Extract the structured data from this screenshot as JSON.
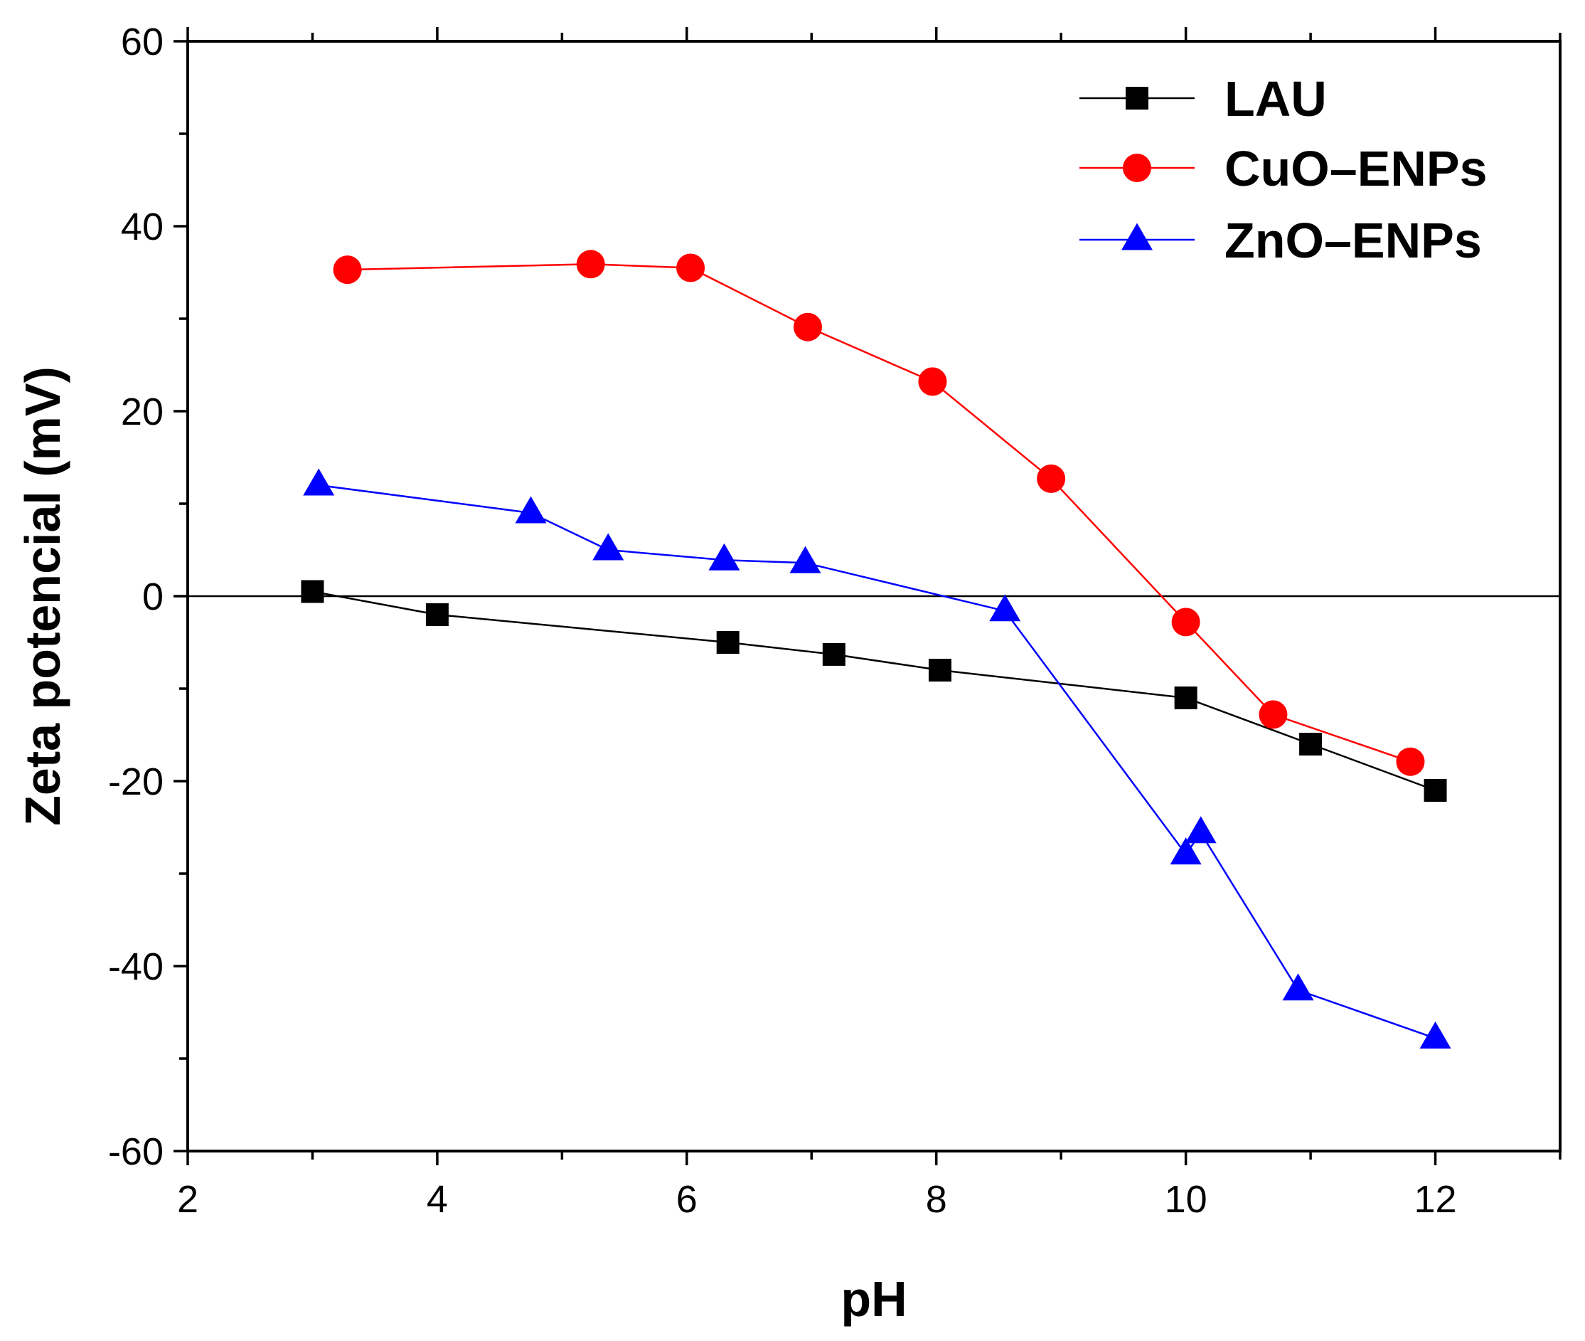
{
  "chart_data": {
    "type": "line",
    "title": "",
    "xlabel": "pH",
    "ylabel": "Zeta potencial (mV)",
    "xlim": [
      2,
      13
    ],
    "ylim": [
      -60,
      60
    ],
    "x_ticks": [
      2,
      4,
      6,
      8,
      10,
      12
    ],
    "x_tick_labels": [
      "2",
      "4",
      "6",
      "8",
      "10",
      "12"
    ],
    "y_ticks": [
      -60,
      -40,
      -20,
      0,
      20,
      40,
      60
    ],
    "y_tick_labels": [
      "-60",
      "-40",
      "-20",
      "0",
      "20",
      "40",
      "60"
    ],
    "zero_line": true,
    "grid": false,
    "legend_position": "top-right",
    "series": [
      {
        "name": "LAU",
        "color": "#000000",
        "marker": "square",
        "x": [
          3.0,
          4.0,
          6.33,
          7.18,
          8.03,
          10.0,
          11.0,
          12.0
        ],
        "y": [
          0.5,
          -2.0,
          -5.0,
          -6.3,
          -8.0,
          -11.0,
          -16.0,
          -21.0
        ]
      },
      {
        "name": "CuO–ENPs",
        "color": "#ff0000",
        "marker": "circle",
        "x": [
          3.28,
          5.23,
          6.03,
          6.97,
          7.97,
          8.92,
          10.0,
          10.7,
          11.8
        ],
        "y": [
          35.3,
          35.9,
          35.5,
          29.1,
          23.2,
          12.7,
          -2.8,
          -12.8,
          -17.9
        ]
      },
      {
        "name": "ZnO–ENPs",
        "color": "#0000ff",
        "marker": "triangle",
        "x": [
          3.05,
          4.75,
          5.37,
          6.3,
          6.95,
          8.55,
          10.0,
          10.12,
          10.9,
          12.0
        ],
        "y": [
          12.0,
          9.0,
          5.0,
          3.9,
          3.6,
          -1.6,
          -27.9,
          -25.6,
          -42.6,
          -47.8
        ]
      }
    ]
  }
}
